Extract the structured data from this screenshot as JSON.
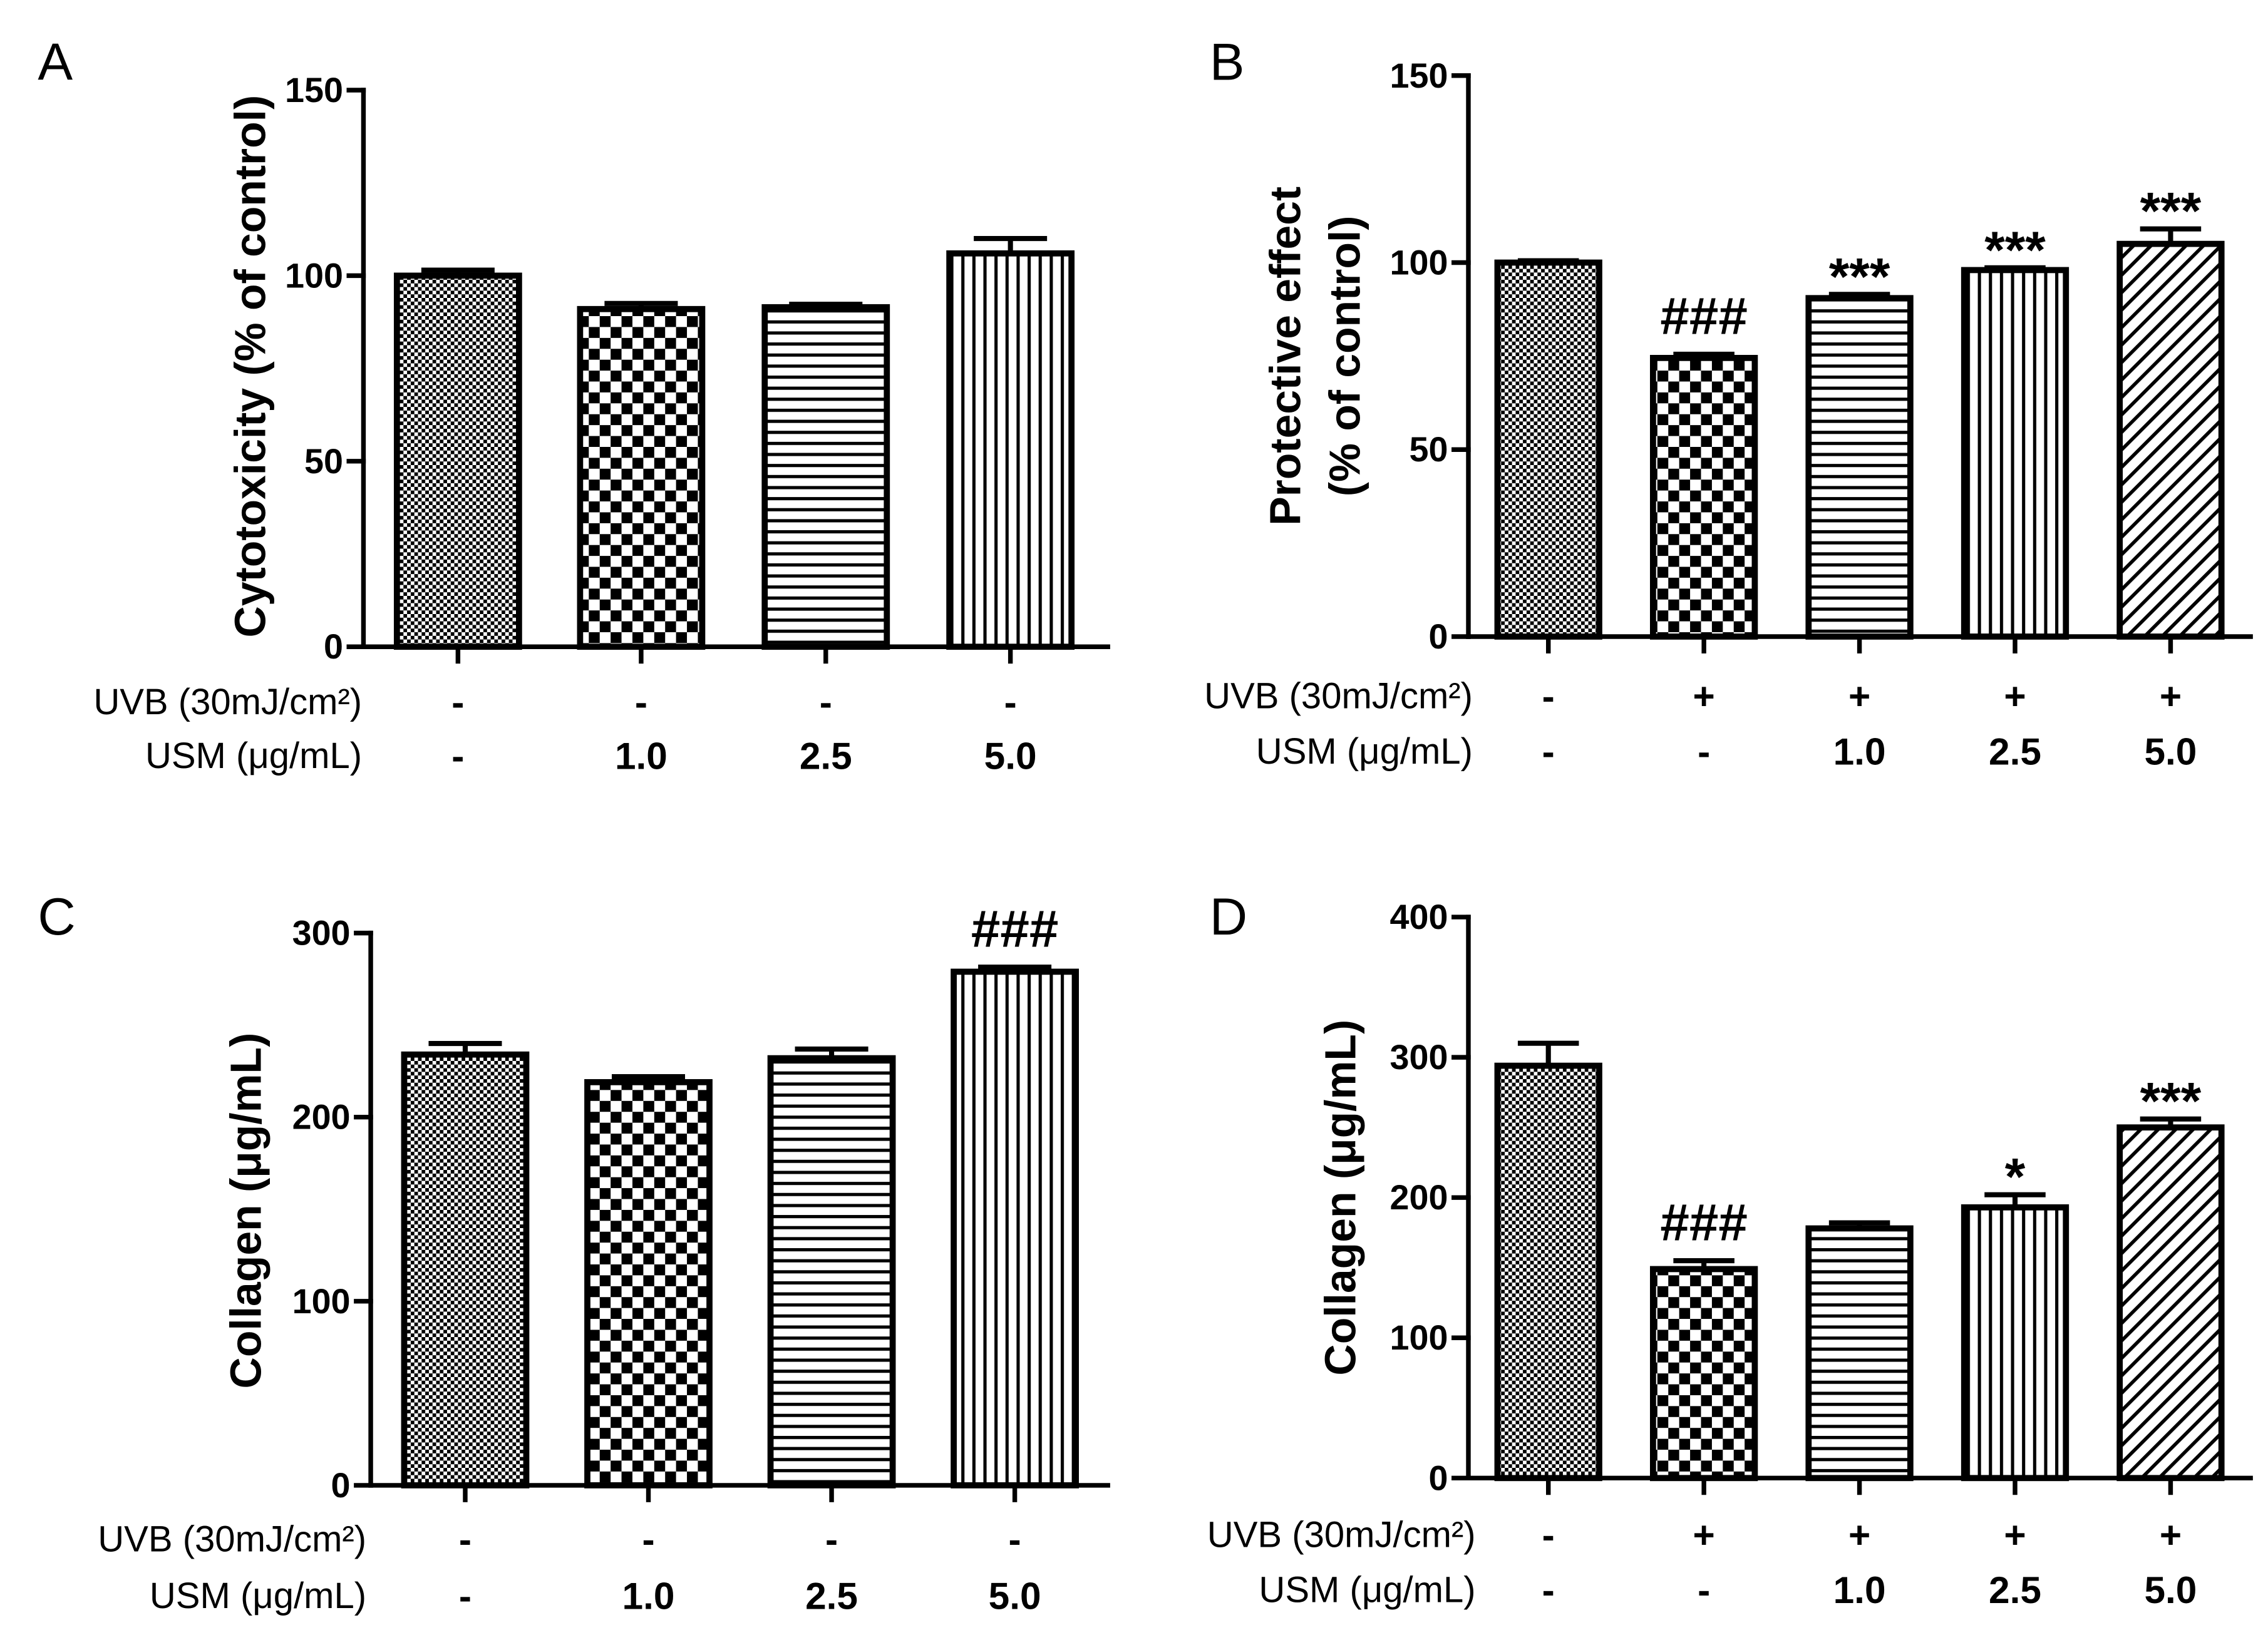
{
  "chart_data": [
    {
      "panel": "A",
      "type": "bar",
      "ylabel": [
        "Cytotoxicity (% of control)"
      ],
      "ylim": [
        0,
        150
      ],
      "yticks": [
        0,
        50,
        100,
        150
      ],
      "grid": false,
      "conditions": [
        {
          "label": "UVB (30mJ/cm²)",
          "values": [
            "-",
            "-",
            "-",
            "-"
          ]
        },
        {
          "label": "USM (μg/mL)",
          "values": [
            "-",
            "1.0",
            "2.5",
            "5.0"
          ]
        }
      ],
      "values": [
        100,
        91,
        91.5,
        106
      ],
      "errors": [
        1.5,
        1.5,
        0.8,
        4
      ],
      "annotations": [
        "",
        "",
        "",
        ""
      ]
    },
    {
      "panel": "B",
      "type": "bar",
      "ylabel": [
        "Protective effect",
        "(% of control)"
      ],
      "ylim": [
        0,
        150
      ],
      "yticks": [
        0,
        50,
        100,
        150
      ],
      "grid": false,
      "conditions": [
        {
          "label": "UVB (30mJ/cm²)",
          "values": [
            "-",
            "+",
            "+",
            "+",
            "+"
          ]
        },
        {
          "label": "USM (μg/mL)",
          "values": [
            "-",
            "-",
            "1.0",
            "2.5",
            "5.0"
          ]
        }
      ],
      "values": [
        100,
        74.5,
        90.5,
        98,
        105
      ],
      "errors": [
        0.5,
        1,
        1,
        0.6,
        4
      ],
      "annotations": [
        "",
        "###",
        "***",
        "***",
        "***"
      ]
    },
    {
      "panel": "C",
      "type": "bar",
      "ylabel": [
        "Collagen (μg/mL)"
      ],
      "ylim": [
        0,
        300
      ],
      "yticks": [
        0,
        100,
        200,
        300
      ],
      "grid": false,
      "conditions": [
        {
          "label": "UVB (30mJ/cm²)",
          "values": [
            "-",
            "-",
            "-",
            "-"
          ]
        },
        {
          "label": "USM (μg/mL)",
          "values": [
            "-",
            "1.0",
            "2.5",
            "5.0"
          ]
        }
      ],
      "values": [
        234,
        219,
        232,
        279
      ],
      "errors": [
        6,
        3,
        5,
        2.5
      ],
      "annotations": [
        "",
        "",
        "",
        "###"
      ]
    },
    {
      "panel": "D",
      "type": "bar",
      "ylabel": [
        "Collagen (μg/mL)"
      ],
      "ylim": [
        0,
        400
      ],
      "yticks": [
        0,
        100,
        200,
        300,
        400
      ],
      "grid": false,
      "conditions": [
        {
          "label": "UVB (30mJ/cm²)",
          "values": [
            "-",
            "+",
            "+",
            "+",
            "+"
          ]
        },
        {
          "label": "USM (μg/mL)",
          "values": [
            "-",
            "-",
            "1.0",
            "2.5",
            "5.0"
          ]
        }
      ],
      "values": [
        294,
        149,
        178,
        193,
        250
      ],
      "errors": [
        16,
        6,
        4,
        9,
        6
      ],
      "annotations": [
        "",
        "###",
        "",
        "*",
        "***"
      ]
    }
  ]
}
